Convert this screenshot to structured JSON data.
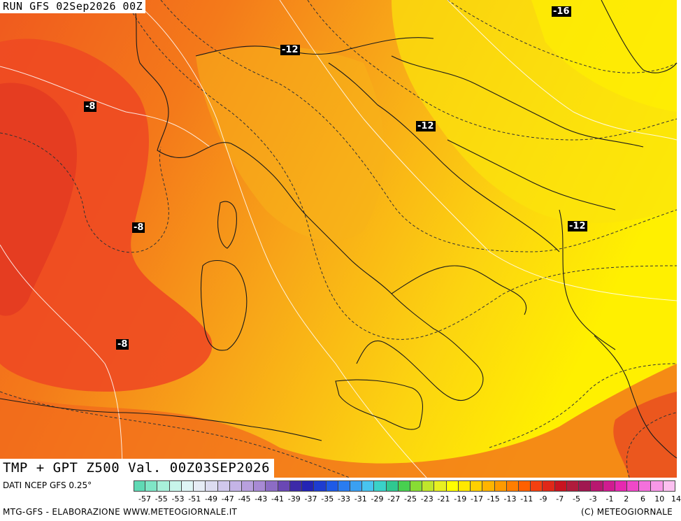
{
  "map": {
    "run_label": "RUN GFS 02Sep2026 00Z",
    "title": "TMP + GPT Z500 Val. 00Z03SEP2026",
    "contour_labels": [
      {
        "id": "c1",
        "text": "-16"
      },
      {
        "id": "c2",
        "text": "-12"
      },
      {
        "id": "c3",
        "text": "-8"
      },
      {
        "id": "c4",
        "text": "-12"
      },
      {
        "id": "c5",
        "text": "-8"
      },
      {
        "id": "c6",
        "text": "-12"
      },
      {
        "id": "c7",
        "text": "-8"
      }
    ]
  },
  "legend": {
    "source_note": "DATI NCEP GFS 0.25°",
    "tick_labels": [
      "-57",
      "-55",
      "-53",
      "-51",
      "-49",
      "-47",
      "-45",
      "-43",
      "-41",
      "-39",
      "-37",
      "-35",
      "-33",
      "-31",
      "-29",
      "-27",
      "-25",
      "-23",
      "-21",
      "-19",
      "-17",
      "-15",
      "-13",
      "-11",
      "-9",
      "-7",
      "-5",
      "-3",
      "-1",
      "2",
      "6",
      "10",
      "14"
    ],
    "colors": [
      "#5fd9b4",
      "#7fe6c6",
      "#a8f0da",
      "#c8f5ea",
      "#dff5f5",
      "#e6ecf5",
      "#dcdcf0",
      "#d0c8ec",
      "#c4b4e6",
      "#b8a0de",
      "#a88ad4",
      "#8c6cc4",
      "#6a48b4",
      "#3c2aa8",
      "#2424b4",
      "#1e3cd0",
      "#1e5ae6",
      "#2a7cf0",
      "#3aa0f2",
      "#48c4f0",
      "#3ad2c8",
      "#30c890",
      "#48d050",
      "#88dc34",
      "#c0e62c",
      "#e8f020",
      "#ffff00",
      "#ffe800",
      "#ffd000",
      "#ffb400",
      "#ff9a00",
      "#ff7e00",
      "#ff6000",
      "#f44010",
      "#e02818",
      "#c81420",
      "#b01c3c",
      "#a01850",
      "#b81870",
      "#d01c90",
      "#e628b0",
      "#f048c8",
      "#f470dc",
      "#f898e8",
      "#fcc0f0"
    ]
  },
  "footer": {
    "left": "MTG-GFS - ELABORAZIONE WWW.METEOGIORNALE.IT",
    "right": "(C) METEOGIORNALE"
  }
}
